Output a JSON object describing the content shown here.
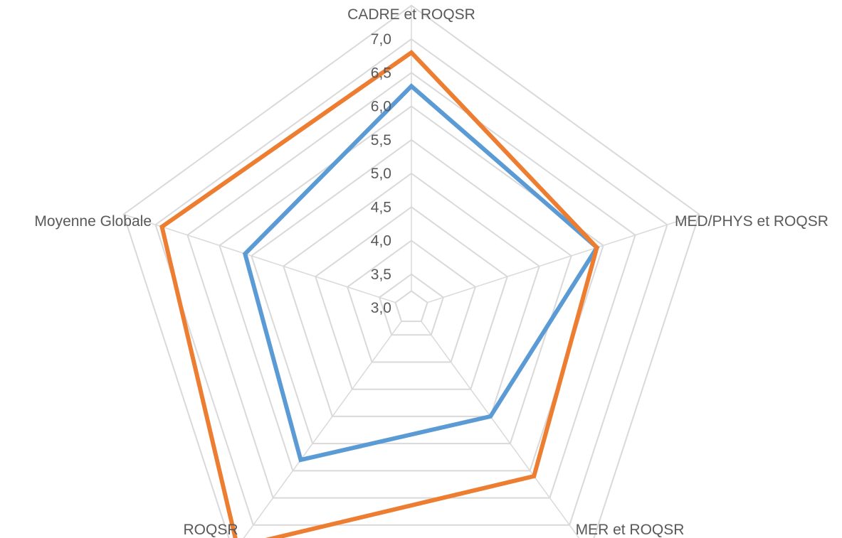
{
  "chart_data": {
    "type": "radar",
    "axes": [
      "CADRE et ROQSR",
      "MED/PHYS et ROQSR",
      "MER et ROQSR",
      "ROQSR",
      "Moyenne Globale"
    ],
    "tick_labels": [
      "3,0",
      "3,5",
      "4,0",
      "4,5",
      "5,0",
      "5,5",
      "6,0",
      "6,5",
      "7,0"
    ],
    "range": [
      3.0,
      7.0
    ],
    "series": [
      {
        "values": [
          6.3,
          5.9,
          5.0,
          5.8,
          5.6
        ],
        "color": "#5b9bd5"
      },
      {
        "values": [
          6.8,
          5.9,
          6.1,
          7.4,
          6.9
        ],
        "color": "#ed7d31"
      }
    ],
    "grid": true
  }
}
